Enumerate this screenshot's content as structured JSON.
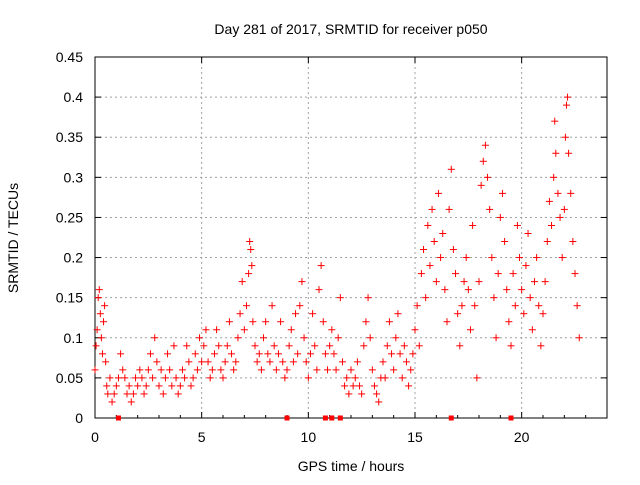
{
  "chart_data": {
    "type": "scatter",
    "title": "Day 281 of 2017, SRMTID for receiver p050",
    "xlabel": "GPS time / hours",
    "ylabel": "SRMTID / TECUs",
    "xlim": [
      0,
      24
    ],
    "ylim": [
      0,
      0.45
    ],
    "xticks": [
      0,
      5,
      10,
      15,
      20
    ],
    "yticks": [
      0,
      0.05,
      0.1,
      0.15,
      0.2,
      0.25,
      0.3,
      0.35,
      0.4,
      0.45
    ],
    "grid": true,
    "marker": "+",
    "color": "#ff0000",
    "series": [
      {
        "name": "SRMTID",
        "points": [
          [
            0.0,
            0.06
          ],
          [
            0.05,
            0.09
          ],
          [
            0.1,
            0.11
          ],
          [
            0.15,
            0.15
          ],
          [
            0.2,
            0.16
          ],
          [
            0.25,
            0.13
          ],
          [
            0.3,
            0.1
          ],
          [
            0.35,
            0.08
          ],
          [
            0.4,
            0.12
          ],
          [
            0.45,
            0.14
          ],
          [
            0.5,
            0.07
          ],
          [
            0.55,
            0.04
          ],
          [
            0.6,
            0.03
          ],
          [
            0.7,
            0.05
          ],
          [
            0.8,
            0.02
          ],
          [
            0.9,
            0.03
          ],
          [
            1.0,
            0.04
          ],
          [
            1.1,
            0.05
          ],
          [
            1.2,
            0.08
          ],
          [
            1.3,
            0.06
          ],
          [
            1.4,
            0.05
          ],
          [
            1.5,
            0.03
          ],
          [
            1.6,
            0.04
          ],
          [
            1.7,
            0.02
          ],
          [
            1.8,
            0.03
          ],
          [
            1.9,
            0.05
          ],
          [
            2.0,
            0.04
          ],
          [
            2.1,
            0.06
          ],
          [
            2.2,
            0.05
          ],
          [
            2.3,
            0.03
          ],
          [
            2.4,
            0.04
          ],
          [
            2.5,
            0.06
          ],
          [
            2.6,
            0.08
          ],
          [
            2.7,
            0.05
          ],
          [
            2.8,
            0.1
          ],
          [
            2.9,
            0.07
          ],
          [
            3.0,
            0.04
          ],
          [
            3.1,
            0.06
          ],
          [
            3.2,
            0.03
          ],
          [
            3.3,
            0.05
          ],
          [
            3.4,
            0.08
          ],
          [
            3.5,
            0.06
          ],
          [
            3.6,
            0.04
          ],
          [
            3.7,
            0.09
          ],
          [
            3.8,
            0.05
          ],
          [
            3.9,
            0.03
          ],
          [
            4.0,
            0.04
          ],
          [
            4.1,
            0.06
          ],
          [
            4.2,
            0.05
          ],
          [
            4.3,
            0.09
          ],
          [
            4.4,
            0.07
          ],
          [
            4.5,
            0.04
          ],
          [
            4.6,
            0.05
          ],
          [
            4.7,
            0.08
          ],
          [
            4.8,
            0.06
          ],
          [
            4.9,
            0.1
          ],
          [
            5.0,
            0.07
          ],
          [
            5.1,
            0.09
          ],
          [
            5.2,
            0.11
          ],
          [
            5.3,
            0.07
          ],
          [
            5.4,
            0.05
          ],
          [
            5.5,
            0.06
          ],
          [
            5.6,
            0.08
          ],
          [
            5.7,
            0.11
          ],
          [
            5.8,
            0.09
          ],
          [
            5.9,
            0.06
          ],
          [
            6.0,
            0.05
          ],
          [
            6.1,
            0.07
          ],
          [
            6.2,
            0.09
          ],
          [
            6.3,
            0.12
          ],
          [
            6.4,
            0.08
          ],
          [
            6.5,
            0.06
          ],
          [
            6.6,
            0.07
          ],
          [
            6.7,
            0.1
          ],
          [
            6.8,
            0.13
          ],
          [
            6.9,
            0.17
          ],
          [
            7.0,
            0.11
          ],
          [
            7.1,
            0.14
          ],
          [
            7.2,
            0.18
          ],
          [
            7.25,
            0.22
          ],
          [
            7.3,
            0.21
          ],
          [
            7.35,
            0.19
          ],
          [
            7.4,
            0.12
          ],
          [
            7.5,
            0.09
          ],
          [
            7.6,
            0.07
          ],
          [
            7.7,
            0.08
          ],
          [
            7.8,
            0.06
          ],
          [
            7.9,
            0.1
          ],
          [
            8.0,
            0.12
          ],
          [
            8.1,
            0.08
          ],
          [
            8.2,
            0.07
          ],
          [
            8.3,
            0.14
          ],
          [
            8.4,
            0.09
          ],
          [
            8.5,
            0.06
          ],
          [
            8.6,
            0.08
          ],
          [
            8.7,
            0.12
          ],
          [
            8.8,
            0.07
          ],
          [
            8.9,
            0.05
          ],
          [
            9.0,
            0.06
          ],
          [
            9.1,
            0.09
          ],
          [
            9.2,
            0.11
          ],
          [
            9.3,
            0.07
          ],
          [
            9.4,
            0.13
          ],
          [
            9.5,
            0.08
          ],
          [
            9.6,
            0.14
          ],
          [
            9.7,
            0.17
          ],
          [
            9.8,
            0.1
          ],
          [
            9.9,
            0.07
          ],
          [
            10.0,
            0.05
          ],
          [
            10.1,
            0.08
          ],
          [
            10.2,
            0.13
          ],
          [
            10.3,
            0.09
          ],
          [
            10.4,
            0.06
          ],
          [
            10.5,
            0.16
          ],
          [
            10.6,
            0.19
          ],
          [
            10.7,
            0.12
          ],
          [
            10.8,
            0.08
          ],
          [
            10.9,
            0.06
          ],
          [
            11.0,
            0.09
          ],
          [
            11.1,
            0.11
          ],
          [
            11.2,
            0.08
          ],
          [
            11.3,
            0.06
          ],
          [
            11.4,
            0.1
          ],
          [
            11.5,
            0.15
          ],
          [
            11.6,
            0.07
          ],
          [
            11.7,
            0.04
          ],
          [
            11.8,
            0.05
          ],
          [
            11.9,
            0.03
          ],
          [
            12.0,
            0.06
          ],
          [
            12.1,
            0.04
          ],
          [
            12.2,
            0.05
          ],
          [
            12.3,
            0.07
          ],
          [
            12.4,
            0.04
          ],
          [
            12.5,
            0.03
          ],
          [
            12.6,
            0.09
          ],
          [
            12.7,
            0.12
          ],
          [
            12.8,
            0.15
          ],
          [
            12.9,
            0.1
          ],
          [
            13.0,
            0.06
          ],
          [
            13.1,
            0.04
          ],
          [
            13.2,
            0.03
          ],
          [
            13.3,
            0.02
          ],
          [
            13.4,
            0.05
          ],
          [
            13.5,
            0.07
          ],
          [
            13.6,
            0.05
          ],
          [
            13.7,
            0.09
          ],
          [
            13.8,
            0.12
          ],
          [
            13.9,
            0.08
          ],
          [
            14.0,
            0.06
          ],
          [
            14.1,
            0.1
          ],
          [
            14.2,
            0.13
          ],
          [
            14.3,
            0.08
          ],
          [
            14.4,
            0.05
          ],
          [
            14.5,
            0.09
          ],
          [
            14.6,
            0.07
          ],
          [
            14.7,
            0.04
          ],
          [
            14.8,
            0.06
          ],
          [
            14.9,
            0.08
          ],
          [
            15.0,
            0.11
          ],
          [
            15.1,
            0.14
          ],
          [
            15.2,
            0.09
          ],
          [
            15.3,
            0.18
          ],
          [
            15.4,
            0.21
          ],
          [
            15.5,
            0.15
          ],
          [
            15.6,
            0.24
          ],
          [
            15.7,
            0.19
          ],
          [
            15.8,
            0.26
          ],
          [
            15.9,
            0.22
          ],
          [
            16.0,
            0.17
          ],
          [
            16.1,
            0.28
          ],
          [
            16.2,
            0.2
          ],
          [
            16.3,
            0.23
          ],
          [
            16.4,
            0.16
          ],
          [
            16.5,
            0.12
          ],
          [
            16.6,
            0.26
          ],
          [
            16.7,
            0.31
          ],
          [
            16.8,
            0.21
          ],
          [
            16.9,
            0.18
          ],
          [
            17.0,
            0.13
          ],
          [
            17.1,
            0.09
          ],
          [
            17.2,
            0.14
          ],
          [
            17.3,
            0.17
          ],
          [
            17.4,
            0.2
          ],
          [
            17.5,
            0.16
          ],
          [
            17.6,
            0.11
          ],
          [
            17.7,
            0.24
          ],
          [
            17.8,
            0.14
          ],
          [
            17.9,
            0.05
          ],
          [
            18.0,
            0.17
          ],
          [
            18.1,
            0.29
          ],
          [
            18.2,
            0.32
          ],
          [
            18.3,
            0.34
          ],
          [
            18.4,
            0.3
          ],
          [
            18.5,
            0.26
          ],
          [
            18.6,
            0.2
          ],
          [
            18.7,
            0.15
          ],
          [
            18.8,
            0.1
          ],
          [
            18.9,
            0.18
          ],
          [
            19.0,
            0.25
          ],
          [
            19.1,
            0.28
          ],
          [
            19.2,
            0.22
          ],
          [
            19.3,
            0.16
          ],
          [
            19.4,
            0.12
          ],
          [
            19.5,
            0.09
          ],
          [
            19.6,
            0.18
          ],
          [
            19.7,
            0.14
          ],
          [
            19.8,
            0.24
          ],
          [
            19.9,
            0.2
          ],
          [
            20.0,
            0.16
          ],
          [
            20.1,
            0.13
          ],
          [
            20.2,
            0.19
          ],
          [
            20.3,
            0.23
          ],
          [
            20.4,
            0.15
          ],
          [
            20.5,
            0.11
          ],
          [
            20.6,
            0.17
          ],
          [
            20.7,
            0.2
          ],
          [
            20.8,
            0.14
          ],
          [
            20.9,
            0.09
          ],
          [
            21.0,
            0.13
          ],
          [
            21.1,
            0.17
          ],
          [
            21.2,
            0.22
          ],
          [
            21.3,
            0.27
          ],
          [
            21.4,
            0.24
          ],
          [
            21.5,
            0.3
          ],
          [
            21.55,
            0.37
          ],
          [
            21.6,
            0.33
          ],
          [
            21.7,
            0.28
          ],
          [
            21.8,
            0.25
          ],
          [
            21.9,
            0.2
          ],
          [
            22.0,
            0.26
          ],
          [
            22.05,
            0.35
          ],
          [
            22.1,
            0.39
          ],
          [
            22.15,
            0.4
          ],
          [
            22.2,
            0.33
          ],
          [
            22.3,
            0.28
          ],
          [
            22.4,
            0.22
          ],
          [
            22.5,
            0.18
          ],
          [
            22.6,
            0.14
          ],
          [
            22.7,
            0.1
          ]
        ]
      }
    ],
    "baseline_points": [
      [
        1.1,
        0
      ],
      [
        9.0,
        0
      ],
      [
        10.8,
        0
      ],
      [
        11.1,
        0
      ],
      [
        11.5,
        0
      ],
      [
        16.7,
        0
      ],
      [
        19.5,
        0
      ]
    ]
  }
}
